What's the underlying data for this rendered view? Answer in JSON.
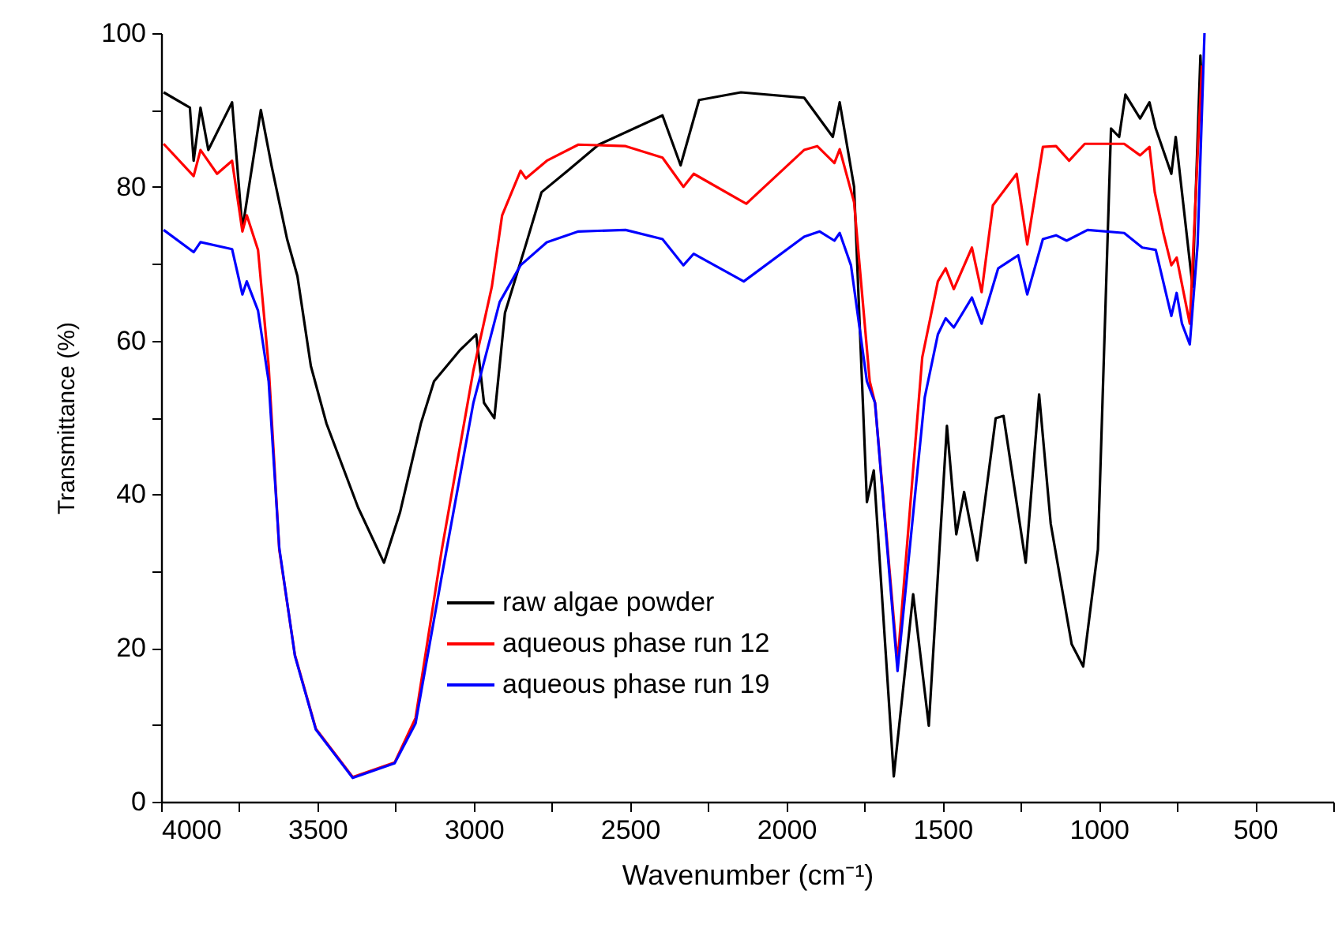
{
  "chart_data": {
    "type": "line",
    "xlabel": "Wavenumber (cm⁻¹)",
    "ylabel": "Transmittance (%)",
    "xlim": [
      4000,
      250
    ],
    "ylim": [
      0,
      100
    ],
    "xticks": [
      4000,
      {
        "value": 3750,
        "label": null
      },
      3500,
      {
        "value": 3250,
        "label": null
      },
      3000,
      {
        "value": 2750,
        "label": null
      },
      2500,
      {
        "value": 2250,
        "label": null
      },
      2000,
      {
        "value": 1750,
        "label": null
      },
      1500,
      {
        "value": 1250,
        "label": null
      },
      1000,
      {
        "value": 750,
        "label": null
      },
      500,
      {
        "value": 250,
        "label": null
      }
    ],
    "yticks": [
      0,
      {
        "value": 10,
        "label": null
      },
      20,
      {
        "value": 30,
        "label": null
      },
      40,
      {
        "value": 50,
        "label": null
      },
      60,
      {
        "value": 70,
        "label": null
      },
      80,
      {
        "value": 90,
        "label": null
      },
      100
    ],
    "grid": false,
    "legend": "bottom",
    "marker": "none",
    "line_style": "solid",
    "series": [
      {
        "name": "raw algae powder",
        "color": "#000000",
        "x": [
          3992,
          3908,
          3896,
          3874,
          3849,
          3773,
          3740,
          3681,
          3647,
          3597,
          3564,
          3521,
          3471,
          3370,
          3287,
          3236,
          3169,
          3127,
          3043,
          2992,
          2967,
          2934,
          2900,
          2833,
          2783,
          2699,
          2600,
          2396,
          2338,
          2279,
          2145,
          1943,
          1851,
          1829,
          1783,
          1742,
          1720,
          1656,
          1594,
          1544,
          1486,
          1456,
          1431,
          1389,
          1330,
          1305,
          1234,
          1191,
          1154,
          1087,
          1050,
          1003,
          961,
          935,
          915,
          868,
          838,
          818,
          768,
          754,
          700,
          675,
          670
        ],
        "values": [
          92.3,
          90.3,
          83.4,
          90.3,
          84.8,
          91,
          74.5,
          90,
          82.8,
          73.2,
          68.4,
          56.7,
          49.2,
          38.3,
          31.1,
          37.6,
          49.2,
          54.7,
          58.8,
          60.8,
          51.9,
          49.9,
          63.6,
          72.5,
          79.3,
          82.1,
          85.5,
          89.3,
          82.8,
          91.3,
          92.3,
          91.6,
          86.5,
          91,
          80,
          39,
          43.1,
          3.3,
          27,
          9.9,
          48.9,
          34.8,
          40.3,
          31.4,
          49.9,
          50.2,
          31.1,
          53,
          36.2,
          20.5,
          17.6,
          32.8,
          87.6,
          86.5,
          92,
          88.9,
          91,
          87.6,
          81.7,
          86.5,
          67,
          97.1,
          92
        ]
      },
      {
        "name": "aqueous phase run 12",
        "color": "#ff0000",
        "x": [
          3992,
          3896,
          3874,
          3821,
          3773,
          3740,
          3726,
          3690,
          3656,
          3622,
          3572,
          3505,
          3387,
          3253,
          3186,
          3102,
          3001,
          2942,
          2909,
          2850,
          2833,
          2766,
          2665,
          2514,
          2396,
          2329,
          2296,
          2128,
          1943,
          1901,
          1846,
          1829,
          1783,
          1733,
          1716,
          1644,
          1565,
          1515,
          1490,
          1464,
          1406,
          1375,
          1339,
          1263,
          1229,
          1179,
          1137,
          1095,
          1045,
          919,
          868,
          838,
          821,
          793,
          768,
          751,
          709,
          684,
          670
        ],
        "values": [
          85.6,
          81.4,
          84.8,
          81.7,
          83.4,
          74.2,
          76.3,
          71.8,
          56.7,
          32.8,
          19.1,
          9.5,
          3.2,
          5.1,
          10.9,
          32.8,
          56.1,
          67,
          76.3,
          82.1,
          81.1,
          83.4,
          85.5,
          85.3,
          83.8,
          80,
          81.7,
          77.8,
          84.8,
          85.3,
          83.1,
          84.9,
          78,
          54.7,
          51.9,
          18.1,
          57.8,
          67.7,
          69.4,
          66.7,
          72.1,
          66.3,
          77.6,
          81.7,
          72.5,
          85.2,
          85.3,
          83.4,
          85.6,
          85.6,
          84.1,
          85.2,
          79.3,
          73.9,
          69.8,
          70.8,
          62.2,
          84.1,
          95.8
        ]
      },
      {
        "name": "aqueous phase run 19",
        "color": "#0000ff",
        "x": [
          3992,
          3896,
          3874,
          3773,
          3740,
          3726,
          3690,
          3656,
          3622,
          3572,
          3505,
          3387,
          3253,
          3186,
          3102,
          3001,
          2917,
          2850,
          2766,
          2665,
          2514,
          2396,
          2329,
          2296,
          2136,
          1943,
          1893,
          1846,
          1829,
          1793,
          1742,
          1716,
          1644,
          1557,
          1515,
          1490,
          1464,
          1406,
          1375,
          1322,
          1258,
          1229,
          1179,
          1137,
          1103,
          1036,
          919,
          861,
          818,
          768,
          751,
          734,
          709,
          684,
          662
        ],
        "values": [
          74.4,
          71.5,
          72.8,
          71.9,
          66,
          67.7,
          63.9,
          54.7,
          33,
          19,
          9.4,
          3.1,
          5,
          10.2,
          29.4,
          51.9,
          65,
          69.8,
          72.8,
          74.2,
          74.4,
          73.2,
          69.8,
          71.3,
          67.7,
          73.5,
          74.2,
          73,
          74,
          69.8,
          54.7,
          51.9,
          17,
          52.6,
          60.8,
          62.9,
          61.7,
          65.6,
          62.2,
          69.4,
          71.1,
          66,
          73.2,
          73.7,
          73,
          74.4,
          74,
          72.1,
          71.8,
          63.2,
          66.2,
          62.2,
          59.5,
          72.5,
          100
        ]
      }
    ]
  }
}
